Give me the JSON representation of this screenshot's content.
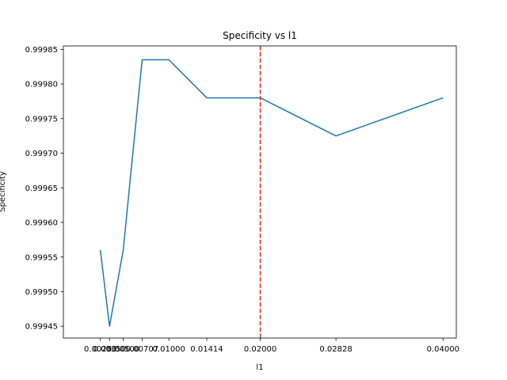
{
  "chart_data": {
    "type": "line",
    "title": "Specificity vs l1",
    "xlabel": "l1",
    "ylabel": "Specificity",
    "xlim": [
      -0.00155,
      0.04145
    ],
    "ylim": [
      0.999433,
      0.999855
    ],
    "x_ticks": [
      0.0025,
      0.0035,
      0.005,
      0.00707,
      0.01,
      0.01414,
      0.02,
      0.02828,
      0.04
    ],
    "x_tick_labels": [
      "0.00250",
      "0.00350",
      "0.00500",
      "0.00707",
      "0.01000",
      "0.01414",
      "0.02000",
      "0.02828",
      "0.04000"
    ],
    "y_ticks": [
      0.99945,
      0.9995,
      0.99955,
      0.9996,
      0.99965,
      0.9997,
      0.99975,
      0.9998,
      0.99985
    ],
    "y_tick_labels": [
      "0.99945",
      "0.99950",
      "0.99955",
      "0.99960",
      "0.99965",
      "0.99970",
      "0.99975",
      "0.99980",
      "0.99985"
    ],
    "series": [
      {
        "color": "#1f77b4",
        "x": [
          0.0025,
          0.0035,
          0.005,
          0.00707,
          0.01,
          0.01414,
          0.02,
          0.02828,
          0.04
        ],
        "y": [
          0.99956,
          0.99945,
          0.99956,
          0.999835,
          0.999835,
          0.99978,
          0.99978,
          0.999725,
          0.99978
        ]
      }
    ],
    "reference_line": {
      "orientation": "vertical",
      "x": 0.02,
      "color": "#d62728",
      "style": "dashed"
    },
    "grid": false,
    "legend": "none"
  }
}
